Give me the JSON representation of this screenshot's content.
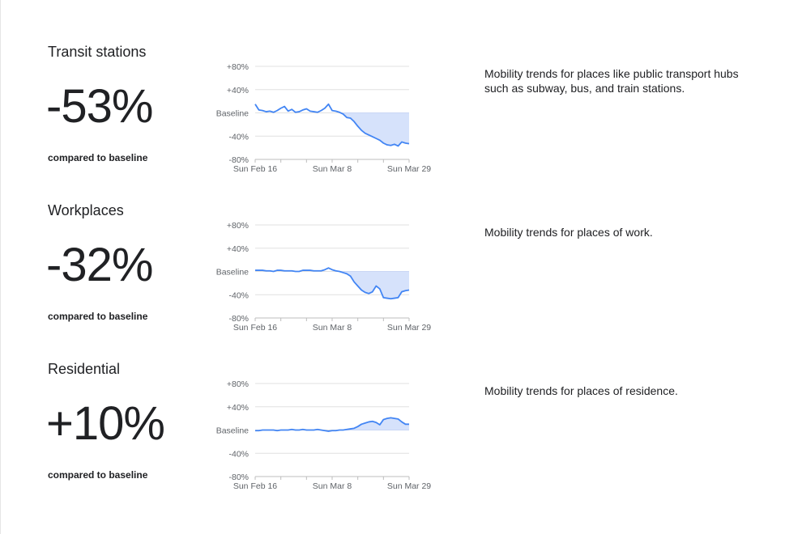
{
  "sections": [
    {
      "title": "Transit stations",
      "value": "-53%",
      "compared_label": "compared to baseline",
      "description": "Mobility trends for places like public transport hubs such as subway, bus, and train stations."
    },
    {
      "title": "Workplaces",
      "value": "-32%",
      "compared_label": "compared to baseline",
      "description": "Mobility trends for places of work."
    },
    {
      "title": "Residential",
      "value": "+10%",
      "compared_label": "compared to baseline",
      "description": "Mobility trends for places of residence."
    }
  ],
  "colors": {
    "line": "#4285f4",
    "fill": "#d6e2fb",
    "grid": "#e0e0e0",
    "axis_text": "#5f6368"
  },
  "chart_data": [
    {
      "type": "area",
      "title": "Transit stations",
      "y_ticks": [
        "+80%",
        "+40%",
        "Baseline",
        "-40%",
        "-80%"
      ],
      "y_tick_values": [
        80,
        40,
        0,
        -40,
        -80
      ],
      "x_ticks": [
        "Sun Feb 16",
        "Sun Mar 8",
        "Sun Mar 29"
      ],
      "x_tick_index": [
        0,
        21,
        42
      ],
      "ylim": [
        -80,
        80
      ],
      "series": [
        {
          "values": [
            15,
            5,
            4,
            2,
            3,
            1,
            4,
            8,
            11,
            3,
            6,
            1,
            2,
            5,
            7,
            3,
            2,
            1,
            4,
            8,
            15,
            4,
            3,
            1,
            -2,
            -8,
            -9,
            -15,
            -23,
            -30,
            -35,
            -38,
            -41,
            -44,
            -47,
            -52,
            -55,
            -56,
            -54,
            -57,
            -50,
            -52,
            -53
          ]
        }
      ]
    },
    {
      "type": "area",
      "title": "Workplaces",
      "y_ticks": [
        "+80%",
        "+40%",
        "Baseline",
        "-40%",
        "-80%"
      ],
      "y_tick_values": [
        80,
        40,
        0,
        -40,
        -80
      ],
      "x_ticks": [
        "Sun Feb 16",
        "Sun Mar 8",
        "Sun Mar 29"
      ],
      "x_tick_index": [
        0,
        21,
        42
      ],
      "ylim": [
        -80,
        80
      ],
      "series": [
        {
          "values": [
            2,
            2,
            2,
            1,
            1,
            0,
            2,
            2,
            1,
            1,
            1,
            0,
            0,
            2,
            2,
            2,
            1,
            1,
            1,
            3,
            6,
            3,
            1,
            0,
            -2,
            -4,
            -8,
            -18,
            -25,
            -32,
            -36,
            -38,
            -35,
            -25,
            -30,
            -45,
            -46,
            -47,
            -46,
            -45,
            -35,
            -33,
            -32
          ]
        }
      ]
    },
    {
      "type": "area",
      "title": "Residential",
      "y_ticks": [
        "+80%",
        "+40%",
        "Baseline",
        "-40%",
        "-80%"
      ],
      "y_tick_values": [
        80,
        40,
        0,
        -40,
        -80
      ],
      "x_ticks": [
        "Sun Feb 16",
        "Sun Mar 8",
        "Sun Mar 29"
      ],
      "x_tick_index": [
        0,
        21,
        42
      ],
      "ylim": [
        -80,
        80
      ],
      "series": [
        {
          "values": [
            -1,
            -1,
            0,
            0,
            0,
            0,
            -1,
            0,
            0,
            0,
            1,
            0,
            0,
            1,
            0,
            0,
            0,
            1,
            0,
            -1,
            -2,
            -1,
            -1,
            0,
            0,
            1,
            2,
            3,
            6,
            10,
            12,
            14,
            15,
            13,
            9,
            18,
            20,
            21,
            20,
            19,
            14,
            10,
            10
          ]
        }
      ]
    }
  ]
}
